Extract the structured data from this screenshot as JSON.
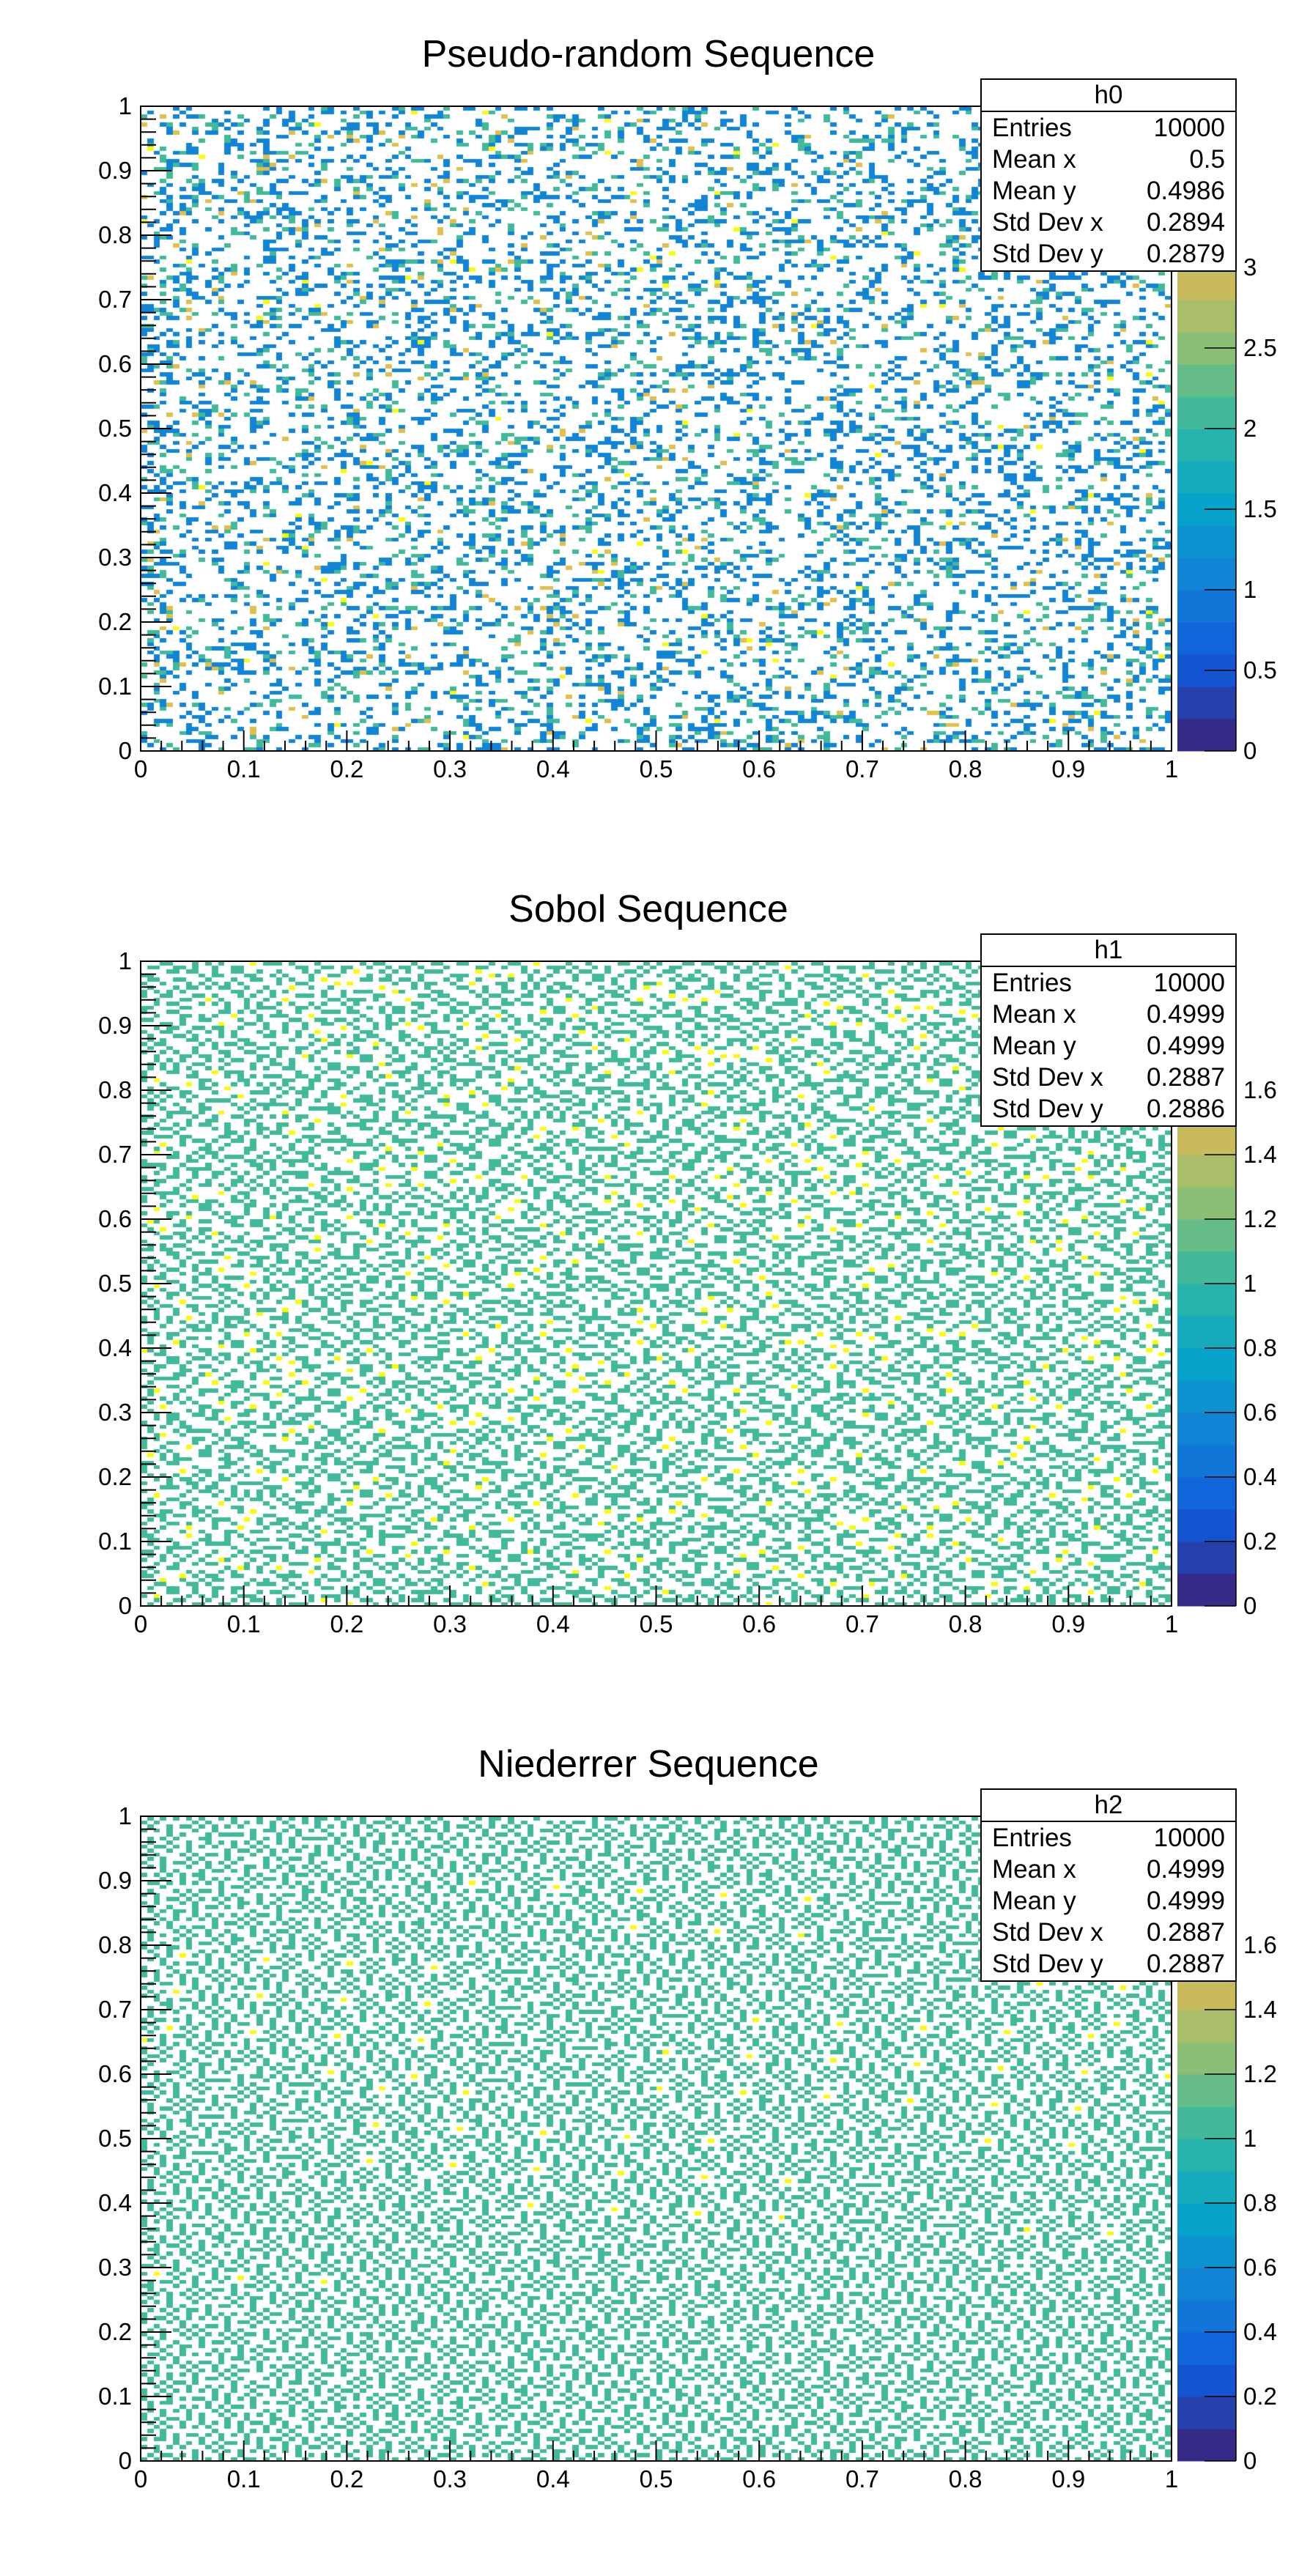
{
  "chart_data": [
    {
      "type": "heatmap",
      "title": "Pseudo-random Sequence",
      "sequence": "pseudo-random",
      "xlim": [
        0,
        1
      ],
      "ylim": [
        0,
        1
      ],
      "zlim": [
        0,
        4
      ],
      "x_ticks": [
        "0",
        "0.1",
        "0.2",
        "0.3",
        "0.4",
        "0.5",
        "0.6",
        "0.7",
        "0.8",
        "0.9",
        "1"
      ],
      "y_ticks": [
        "0",
        "0.1",
        "0.2",
        "0.3",
        "0.4",
        "0.5",
        "0.6",
        "0.7",
        "0.8",
        "0.9",
        "1"
      ],
      "z_ticks": [
        "0",
        "0.5",
        "1",
        "1.5",
        "2",
        "2.5",
        "3"
      ],
      "palette": "kBird",
      "stats": {
        "name": "h0",
        "rows": [
          {
            "label": "Entries",
            "value": "10000"
          },
          {
            "label": "Mean x",
            "value": "0.5"
          },
          {
            "label": "Mean y",
            "value": "0.4986"
          },
          {
            "label": "Std Dev x",
            "value": "0.2894"
          },
          {
            "label": "Std Dev y",
            "value": "0.2879"
          }
        ]
      }
    },
    {
      "type": "heatmap",
      "title": "Sobol Sequence",
      "sequence": "sobol",
      "xlim": [
        0,
        1
      ],
      "ylim": [
        0,
        1
      ],
      "zlim": [
        0,
        2
      ],
      "x_ticks": [
        "0",
        "0.1",
        "0.2",
        "0.3",
        "0.4",
        "0.5",
        "0.6",
        "0.7",
        "0.8",
        "0.9",
        "1"
      ],
      "y_ticks": [
        "0",
        "0.1",
        "0.2",
        "0.3",
        "0.4",
        "0.5",
        "0.6",
        "0.7",
        "0.8",
        "0.9",
        "1"
      ],
      "z_ticks": [
        "0",
        "0.2",
        "0.4",
        "0.6",
        "0.8",
        "1",
        "1.2",
        "1.4",
        "1.6"
      ],
      "palette": "kBird",
      "stats": {
        "name": "h1",
        "rows": [
          {
            "label": "Entries",
            "value": "10000"
          },
          {
            "label": "Mean x",
            "value": "0.4999"
          },
          {
            "label": "Mean y",
            "value": "0.4999"
          },
          {
            "label": "Std Dev x",
            "value": "0.2887"
          },
          {
            "label": "Std Dev y",
            "value": "0.2886"
          }
        ]
      }
    },
    {
      "type": "heatmap",
      "title": "Niederrer Sequence",
      "sequence": "niederreiter",
      "xlim": [
        0,
        1
      ],
      "ylim": [
        0,
        1
      ],
      "zlim": [
        0,
        2
      ],
      "x_ticks": [
        "0",
        "0.1",
        "0.2",
        "0.3",
        "0.4",
        "0.5",
        "0.6",
        "0.7",
        "0.8",
        "0.9",
        "1"
      ],
      "y_ticks": [
        "0",
        "0.1",
        "0.2",
        "0.3",
        "0.4",
        "0.5",
        "0.6",
        "0.7",
        "0.8",
        "0.9",
        "1"
      ],
      "z_ticks": [
        "0",
        "0.2",
        "0.4",
        "0.6",
        "0.8",
        "1",
        "1.2",
        "1.4",
        "1.6"
      ],
      "palette": "kBird",
      "stats": {
        "name": "h2",
        "rows": [
          {
            "label": "Entries",
            "value": "10000"
          },
          {
            "label": "Mean x",
            "value": "0.4999"
          },
          {
            "label": "Mean y",
            "value": "0.4999"
          },
          {
            "label": "Std Dev x",
            "value": "0.2887"
          },
          {
            "label": "Std Dev y",
            "value": "0.2887"
          }
        ]
      }
    }
  ]
}
